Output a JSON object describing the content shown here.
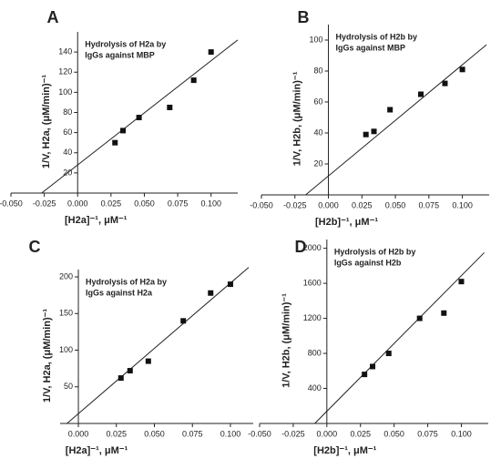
{
  "chart_data": [
    {
      "type": "scatter",
      "panel_label": "A",
      "annotation": [
        "Hydrolysis of H2a by",
        "IgGs against MBP"
      ],
      "x_label": "[H2a]⁻¹, μM⁻¹",
      "y_label": "1/V, H2a, (μM/min)⁻¹",
      "xlim": [
        -0.05,
        0.12
      ],
      "ylim": [
        0,
        160
      ],
      "xticks": [
        {
          "value": -0.05,
          "label": "-0.050"
        },
        {
          "value": -0.025,
          "label": "-0.025"
        },
        {
          "value": 0,
          "label": "0.000"
        },
        {
          "value": 0.025,
          "label": "0.025"
        },
        {
          "value": 0.05,
          "label": "0.050"
        },
        {
          "value": 0.075,
          "label": "0.075"
        },
        {
          "value": 0.1,
          "label": "0.100"
        }
      ],
      "yticks": [
        20,
        40,
        60,
        80,
        100,
        120,
        140
      ],
      "points": {
        "x": [
          0.028,
          0.034,
          0.046,
          0.069,
          0.087,
          0.1
        ],
        "y": [
          50,
          62,
          75,
          85,
          112,
          140
        ]
      },
      "fit_line": {
        "x": [
          -0.027,
          0.12
        ],
        "y": [
          0,
          152
        ]
      }
    },
    {
      "type": "scatter",
      "panel_label": "B",
      "annotation": [
        "Hydrolysis of H2b by",
        "IgGs against MBP"
      ],
      "x_label": "[H2b]⁻¹, μM⁻¹",
      "y_label": "1/V, H2b, (μM/min)⁻¹",
      "xlim": [
        -0.05,
        0.12
      ],
      "ylim": [
        0,
        110
      ],
      "xticks": [
        {
          "value": -0.05,
          "label": "-0.050"
        },
        {
          "value": -0.025,
          "label": "-0.025"
        },
        {
          "value": 0,
          "label": "0.000"
        },
        {
          "value": 0.025,
          "label": "0.025"
        },
        {
          "value": 0.05,
          "label": "0.050"
        },
        {
          "value": 0.075,
          "label": "0.075"
        },
        {
          "value": 0.1,
          "label": "0.100"
        }
      ],
      "yticks": [
        20,
        40,
        60,
        80,
        100
      ],
      "points": {
        "x": [
          0.028,
          0.034,
          0.046,
          0.069,
          0.087,
          0.1
        ],
        "y": [
          39,
          41,
          55,
          65,
          72,
          81
        ]
      },
      "fit_line": {
        "x": [
          -0.017,
          0.118
        ],
        "y": [
          0,
          97
        ]
      }
    },
    {
      "type": "scatter",
      "panel_label": "C",
      "annotation": [
        "Hydrolysis of H2a by",
        "IgGs against H2a"
      ],
      "x_label": "[H2a]⁻¹, μM⁻¹",
      "y_label": "1/V, H2a, (μM/min)⁻¹",
      "xlim": [
        -0.012,
        0.115
      ],
      "ylim": [
        0,
        210
      ],
      "xticks": [
        {
          "value": 0,
          "label": "0.000"
        },
        {
          "value": 0.025,
          "label": "0.025"
        },
        {
          "value": 0.05,
          "label": "0.050"
        },
        {
          "value": 0.075,
          "label": "0.075"
        },
        {
          "value": 0.1,
          "label": "0.100"
        }
      ],
      "yticks": [
        50,
        100,
        150,
        200
      ],
      "points": {
        "x": [
          0.028,
          0.034,
          0.046,
          0.069,
          0.087,
          0.1
        ],
        "y": [
          62,
          72,
          85,
          140,
          178,
          190
        ]
      },
      "fit_line": {
        "x": [
          -0.0075,
          0.112
        ],
        "y": [
          0,
          213
        ]
      }
    },
    {
      "type": "scatter",
      "panel_label": "D",
      "annotation": [
        "Hydrolysis of H2b by",
        "IgGs against H2b"
      ],
      "x_label": "[H2b]⁻¹, μM⁻¹",
      "y_label": "1/V, H2b, (μM/min)⁻¹",
      "xlim": [
        -0.05,
        0.12
      ],
      "ylim": [
        0,
        2100
      ],
      "xticks": [
        {
          "value": -0.05,
          "label": "-0.050"
        },
        {
          "value": -0.025,
          "label": "-0.025"
        },
        {
          "value": 0,
          "label": "0.000"
        },
        {
          "value": 0.025,
          "label": "0.025"
        },
        {
          "value": 0.05,
          "label": "0.050"
        },
        {
          "value": 0.075,
          "label": "0.075"
        },
        {
          "value": 0.1,
          "label": "0.100"
        }
      ],
      "yticks": [
        400,
        800,
        1200,
        1600,
        2000
      ],
      "points": {
        "x": [
          0.028,
          0.034,
          0.046,
          0.069,
          0.087,
          0.1
        ],
        "y": [
          560,
          650,
          800,
          1200,
          1260,
          1620
        ]
      },
      "fit_line": {
        "x": [
          -0.009,
          0.117
        ],
        "y": [
          0,
          1950
        ]
      }
    }
  ]
}
